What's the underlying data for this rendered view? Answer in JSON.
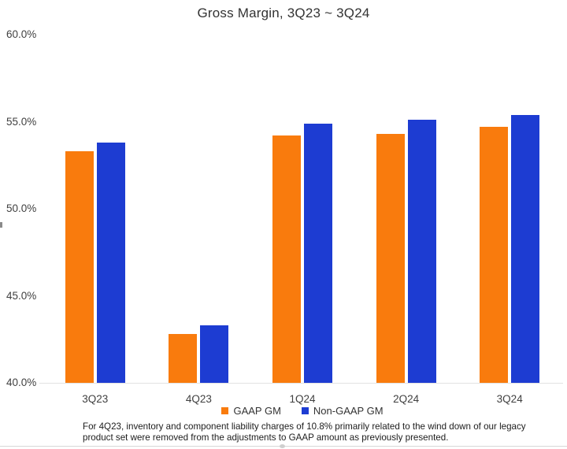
{
  "chart_data": {
    "type": "bar",
    "title": "Gross Margin, 3Q23 ~ 3Q24",
    "categories": [
      "3Q23",
      "4Q23",
      "1Q24",
      "2Q24",
      "3Q24"
    ],
    "series": [
      {
        "name": "GAAP GM",
        "color": "#F97B0D",
        "values": [
          53.3,
          42.8,
          54.2,
          54.3,
          54.7
        ]
      },
      {
        "name": "Non-GAAP GM",
        "color": "#1D3CD2",
        "values": [
          53.8,
          43.3,
          54.9,
          55.1,
          55.4
        ]
      }
    ],
    "xlabel": "",
    "ylabel": "",
    "ylim": [
      40,
      60
    ],
    "yticks": [
      {
        "value": 60,
        "label": "60.0%"
      },
      {
        "value": 55,
        "label": "55.0%"
      },
      {
        "value": 50,
        "label": "50.0%"
      },
      {
        "value": 45,
        "label": "45.0%"
      },
      {
        "value": 40,
        "label": "40.0%"
      }
    ],
    "grid": "baseline-only",
    "legend_position": "bottom-center"
  },
  "footnote": {
    "line1": "For 4Q23, inventory and component liability charges of 10.8% primarily related to the wind down of our legacy",
    "line2": "product set were removed from the adjustments to GAAP amount as previously presented."
  }
}
